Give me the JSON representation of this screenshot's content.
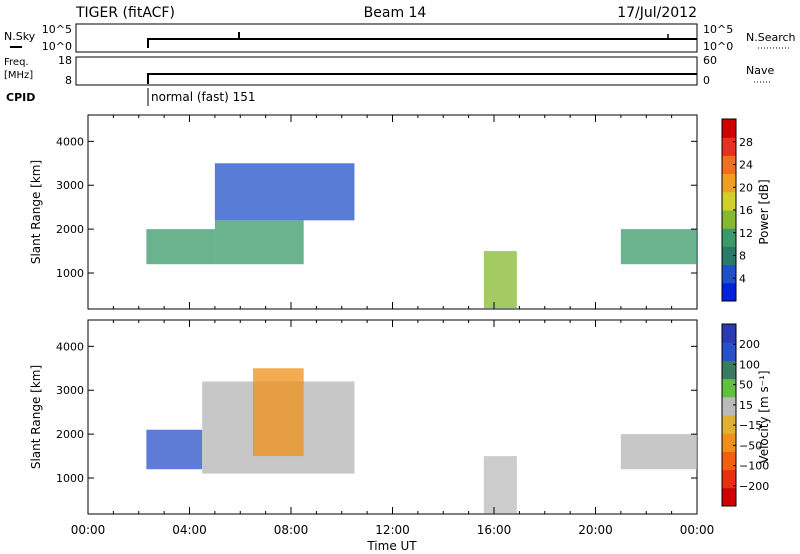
{
  "header": {
    "station": "TIGER (fitACF)",
    "beam": "Beam 14",
    "date": "17/Jul/2012"
  },
  "top_panels": {
    "nsky_label": "N.Sky",
    "nsearch_label": "N.Search",
    "freq_label_line1": "Freq.",
    "freq_label_line2": "[MHz]",
    "nave_label": "Nave",
    "cpid_label": "CPID",
    "cpid_text": "normal (fast) 151",
    "nsky_ticks": [
      "10^5",
      "10^0"
    ],
    "nsearch_ticks": [
      "10^5",
      "10^0"
    ],
    "freq_ticks": [
      "18",
      "8"
    ],
    "nave_ticks": [
      "60",
      "0"
    ]
  },
  "colors": {
    "power_scale": [
      "#0022dd",
      "#2050c8",
      "#2a7a6a",
      "#3a9a6a",
      "#86b830",
      "#d0d028",
      "#f0a020",
      "#f07020",
      "#e83020",
      "#d00000"
    ],
    "velocity_scale": [
      "#2a3ab0",
      "#2850c8",
      "#3a7a60",
      "#60c040",
      "#bbbbbb",
      "#e0b030",
      "#f09018",
      "#f06010",
      "#e83010",
      "#d00000"
    ],
    "ground_scatter": "#b4b4b4"
  },
  "chart_data": [
    {
      "type": "heatmap",
      "name": "power",
      "xlabel": "",
      "ylabel": "Slant Range [km]",
      "x_ticks": [
        "00:00",
        "04:00",
        "08:00",
        "12:00",
        "16:00",
        "20:00",
        "00:00"
      ],
      "x_range_hours": [
        0,
        24
      ],
      "y_ticks": [
        1000,
        2000,
        3000,
        4000
      ],
      "ylim": [
        180,
        4600
      ],
      "colorbar": {
        "label": "Power [dB]",
        "ticks": [
          4,
          8,
          12,
          16,
          20,
          24,
          28
        ],
        "range": [
          0,
          32
        ]
      },
      "regions": [
        {
          "t_start": 2.3,
          "t_end": 5.0,
          "range_low": 1200,
          "range_high": 2000,
          "value": 10
        },
        {
          "t_start": 5.0,
          "t_end": 8.5,
          "range_low": 1200,
          "range_high": 2200,
          "value": 12
        },
        {
          "t_start": 5.0,
          "t_end": 10.5,
          "range_low": 2200,
          "range_high": 3500,
          "value": 6
        },
        {
          "t_start": 15.6,
          "t_end": 16.9,
          "range_low": 200,
          "range_high": 1500,
          "value": 14
        },
        {
          "t_start": 21.0,
          "t_end": 24.0,
          "range_low": 1200,
          "range_high": 2000,
          "value": 10
        }
      ]
    },
    {
      "type": "heatmap",
      "name": "velocity",
      "xlabel": "Time UT",
      "ylabel": "Slant Range [km]",
      "x_ticks": [
        "00:00",
        "04:00",
        "08:00",
        "12:00",
        "16:00",
        "20:00",
        "00:00"
      ],
      "x_range_hours": [
        0,
        24
      ],
      "y_ticks": [
        1000,
        2000,
        3000,
        4000
      ],
      "ylim": [
        180,
        4600
      ],
      "colorbar": {
        "label": "Velocity [m s⁻¹]",
        "ticks": [
          200,
          100,
          50,
          15,
          -15,
          -50,
          -100,
          -200
        ],
        "range": [
          -250,
          250
        ]
      },
      "regions": [
        {
          "t_start": 2.3,
          "t_end": 4.5,
          "range_low": 1200,
          "range_high": 2100,
          "value": 180
        },
        {
          "t_start": 4.5,
          "t_end": 10.5,
          "range_low": 1100,
          "range_high": 3200,
          "value": 0
        },
        {
          "t_start": 6.5,
          "t_end": 8.5,
          "range_low": 1500,
          "range_high": 3500,
          "value": -60
        },
        {
          "t_start": 15.6,
          "t_end": 16.9,
          "range_low": 200,
          "range_high": 1500,
          "value": 30
        },
        {
          "t_start": 21.0,
          "t_end": 24.0,
          "range_low": 1200,
          "range_high": 2000,
          "value": 0
        }
      ]
    }
  ]
}
